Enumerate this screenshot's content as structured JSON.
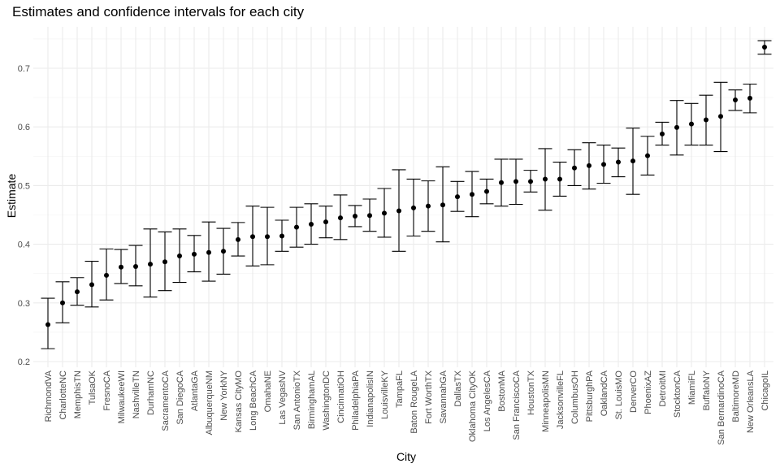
{
  "chart_data": {
    "type": "scatter",
    "title": "Estimates and confidence intervals for each city",
    "xlabel": "City",
    "ylabel": "Estimate",
    "ylim": [
      0.2,
      0.75
    ],
    "yticks": [
      "0.2",
      "0.3",
      "0.4",
      "0.5",
      "0.6",
      "0.7"
    ],
    "grid": true,
    "series": [
      {
        "points": [
          {
            "city": "RichmondVA",
            "estimate": 0.263,
            "low": 0.222,
            "high": 0.308
          },
          {
            "city": "CharlotteNC",
            "estimate": 0.3,
            "low": 0.266,
            "high": 0.336
          },
          {
            "city": "MemphisTN",
            "estimate": 0.319,
            "low": 0.296,
            "high": 0.343
          },
          {
            "city": "TulsaOK",
            "estimate": 0.331,
            "low": 0.293,
            "high": 0.371
          },
          {
            "city": "FresnoCA",
            "estimate": 0.347,
            "low": 0.305,
            "high": 0.392
          },
          {
            "city": "MilwaukeeWI",
            "estimate": 0.361,
            "low": 0.333,
            "high": 0.391
          },
          {
            "city": "NashvilleTN",
            "estimate": 0.362,
            "low": 0.329,
            "high": 0.398
          },
          {
            "city": "DurhamNC",
            "estimate": 0.366,
            "low": 0.31,
            "high": 0.426
          },
          {
            "city": "SacramentoCA",
            "estimate": 0.37,
            "low": 0.321,
            "high": 0.421
          },
          {
            "city": "San DiegoCA",
            "estimate": 0.38,
            "low": 0.335,
            "high": 0.426
          },
          {
            "city": "AtlantaGA",
            "estimate": 0.383,
            "low": 0.353,
            "high": 0.415
          },
          {
            "city": "AlbuquerqueNM",
            "estimate": 0.386,
            "low": 0.337,
            "high": 0.438
          },
          {
            "city": "New YorkNY",
            "estimate": 0.388,
            "low": 0.349,
            "high": 0.427
          },
          {
            "city": "Kansas CityMO",
            "estimate": 0.408,
            "low": 0.38,
            "high": 0.437
          },
          {
            "city": "Long BeachCA",
            "estimate": 0.413,
            "low": 0.363,
            "high": 0.465
          },
          {
            "city": "OmahaNE",
            "estimate": 0.413,
            "low": 0.365,
            "high": 0.463
          },
          {
            "city": "Las VegasNV",
            "estimate": 0.414,
            "low": 0.388,
            "high": 0.441
          },
          {
            "city": "San AntonioTX",
            "estimate": 0.429,
            "low": 0.395,
            "high": 0.463
          },
          {
            "city": "BirminghamAL",
            "estimate": 0.434,
            "low": 0.4,
            "high": 0.469
          },
          {
            "city": "WashingtonDC",
            "estimate": 0.438,
            "low": 0.411,
            "high": 0.465
          },
          {
            "city": "CincinnatiOH",
            "estimate": 0.445,
            "low": 0.408,
            "high": 0.484
          },
          {
            "city": "PhiladelphiaPA",
            "estimate": 0.448,
            "low": 0.43,
            "high": 0.466
          },
          {
            "city": "IndianapolisIN",
            "estimate": 0.449,
            "low": 0.422,
            "high": 0.477
          },
          {
            "city": "LouisvilleKY",
            "estimate": 0.453,
            "low": 0.412,
            "high": 0.495
          },
          {
            "city": "TampaFL",
            "estimate": 0.457,
            "low": 0.388,
            "high": 0.527
          },
          {
            "city": "Baton RougeLA",
            "estimate": 0.462,
            "low": 0.414,
            "high": 0.511
          },
          {
            "city": "Fort WorthTX",
            "estimate": 0.465,
            "low": 0.422,
            "high": 0.508
          },
          {
            "city": "SavannahGA",
            "estimate": 0.467,
            "low": 0.404,
            "high": 0.532
          },
          {
            "city": "DallasTX",
            "estimate": 0.481,
            "low": 0.456,
            "high": 0.507
          },
          {
            "city": "Oklahoma CityOK",
            "estimate": 0.485,
            "low": 0.447,
            "high": 0.524
          },
          {
            "city": "Los AngelesCA",
            "estimate": 0.49,
            "low": 0.469,
            "high": 0.511
          },
          {
            "city": "BostonMA",
            "estimate": 0.505,
            "low": 0.465,
            "high": 0.545
          },
          {
            "city": "San FranciscoCA",
            "estimate": 0.507,
            "low": 0.468,
            "high": 0.545
          },
          {
            "city": "HoustonTX",
            "estimate": 0.507,
            "low": 0.489,
            "high": 0.526
          },
          {
            "city": "MinneapolisMN",
            "estimate": 0.511,
            "low": 0.458,
            "high": 0.563
          },
          {
            "city": "JacksonvilleFL",
            "estimate": 0.511,
            "low": 0.482,
            "high": 0.54
          },
          {
            "city": "ColumbusOH",
            "estimate": 0.53,
            "low": 0.5,
            "high": 0.561
          },
          {
            "city": "PittsburghPA",
            "estimate": 0.534,
            "low": 0.494,
            "high": 0.573
          },
          {
            "city": "OaklandCA",
            "estimate": 0.536,
            "low": 0.504,
            "high": 0.569
          },
          {
            "city": "St. LouisMO",
            "estimate": 0.54,
            "low": 0.515,
            "high": 0.564
          },
          {
            "city": "DenverCO",
            "estimate": 0.542,
            "low": 0.485,
            "high": 0.598
          },
          {
            "city": "PhoenixAZ",
            "estimate": 0.551,
            "low": 0.518,
            "high": 0.584
          },
          {
            "city": "DetroitMI",
            "estimate": 0.588,
            "low": 0.569,
            "high": 0.608
          },
          {
            "city": "StocktonCA",
            "estimate": 0.599,
            "low": 0.552,
            "high": 0.645
          },
          {
            "city": "MiamiFL",
            "estimate": 0.605,
            "low": 0.569,
            "high": 0.64
          },
          {
            "city": "BuffaloNY",
            "estimate": 0.612,
            "low": 0.569,
            "high": 0.654
          },
          {
            "city": "San BernardinoCA",
            "estimate": 0.618,
            "low": 0.558,
            "high": 0.676
          },
          {
            "city": "BaltimoreMD",
            "estimate": 0.646,
            "low": 0.628,
            "high": 0.663
          },
          {
            "city": "New OrleansLA",
            "estimate": 0.649,
            "low": 0.624,
            "high": 0.673
          },
          {
            "city": "ChicagoIL",
            "estimate": 0.736,
            "low": 0.724,
            "high": 0.747
          }
        ]
      }
    ]
  }
}
